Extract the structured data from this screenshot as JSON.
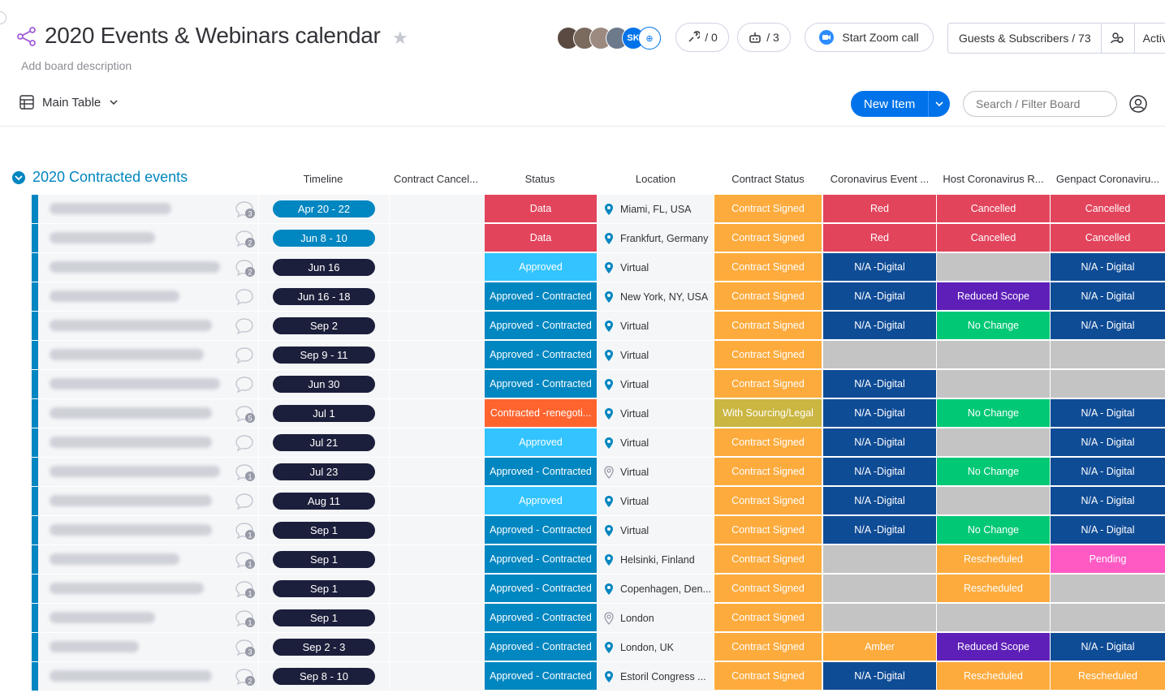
{
  "header": {
    "title": "2020 Events & Webinars calendar",
    "description": "Add board description",
    "avatar_initials": "SK",
    "automations": "/ 0",
    "integrations": "/ 3",
    "zoom_label": "Start Zoom call",
    "guests_label": "Guests & Subscribers / 73",
    "activity_label": "Activ"
  },
  "toolbar": {
    "view_label": "Main Table",
    "new_item_label": "New Item",
    "search_placeholder": "Search / Filter Board"
  },
  "group": {
    "title": "2020 Contracted events",
    "color": "#0086c0"
  },
  "columns": {
    "timeline": "Timeline",
    "contract_cancel": "Contract Cancel...",
    "status": "Status",
    "location": "Location",
    "contract_status": "Contract Status",
    "corona_event": "Coronavirus Event ...",
    "host_corona": "Host Coronavirus R...",
    "genpact_corona": "Genpact Coronaviru..."
  },
  "colors": {
    "red": "#e2445c",
    "sky": "#33c4ff",
    "blue": "#0086c0",
    "orange_status": "#ff642e",
    "orange": "#fdab3d",
    "mustard": "#cab641",
    "navy": "#0f4c96",
    "grey": "#c4c4c4",
    "purple": "#5e1fb8",
    "green": "#00c875",
    "pink": "#ff5ac4",
    "timeline_dark": "#1c1f3b",
    "timeline_blue": "#0086c0"
  },
  "rows": [
    {
      "comments": "3",
      "timeline": "Apr 20 - 22",
      "tl_color": "#0086c0",
      "status": "Data",
      "status_color": "#e2445c",
      "location": "Miami, FL, USA",
      "cstatus": "Contract Signed",
      "cstatus_color": "#fdab3d",
      "c1": "Red",
      "c1_color": "#e2445c",
      "c2": "Cancelled",
      "c2_color": "#e2445c",
      "c3": "Cancelled",
      "c3_color": "#e2445c"
    },
    {
      "comments": "2",
      "timeline": "Jun 8 - 10",
      "tl_color": "#0086c0",
      "status": "Data",
      "status_color": "#e2445c",
      "location": "Frankfurt, Germany",
      "cstatus": "Contract Signed",
      "cstatus_color": "#fdab3d",
      "c1": "Red",
      "c1_color": "#e2445c",
      "c2": "Cancelled",
      "c2_color": "#e2445c",
      "c3": "Cancelled",
      "c3_color": "#e2445c"
    },
    {
      "comments": "2",
      "timeline": "Jun 16",
      "tl_color": "#1c1f3b",
      "status": "Approved",
      "status_color": "#33c4ff",
      "location": "Virtual",
      "cstatus": "Contract Signed",
      "cstatus_color": "#fdab3d",
      "c1": "N/A -Digital",
      "c1_color": "#0f4c96",
      "c2": "",
      "c2_color": "#c4c4c4",
      "c3": "N/A - Digital",
      "c3_color": "#0f4c96"
    },
    {
      "comments": "",
      "timeline": "Jun 16 - 18",
      "tl_color": "#1c1f3b",
      "status": "Approved - Contracted",
      "status_color": "#0086c0",
      "location": "New York, NY, USA",
      "cstatus": "Contract Signed",
      "cstatus_color": "#fdab3d",
      "c1": "N/A -Digital",
      "c1_color": "#0f4c96",
      "c2": "Reduced Scope",
      "c2_color": "#5e1fb8",
      "c3": "N/A - Digital",
      "c3_color": "#0f4c96"
    },
    {
      "comments": "",
      "timeline": "Sep 2",
      "tl_color": "#1c1f3b",
      "status": "Approved - Contracted",
      "status_color": "#0086c0",
      "location": "Virtual",
      "cstatus": "Contract Signed",
      "cstatus_color": "#fdab3d",
      "c1": "N/A -Digital",
      "c1_color": "#0f4c96",
      "c2": "No Change",
      "c2_color": "#00c875",
      "c3": "N/A - Digital",
      "c3_color": "#0f4c96"
    },
    {
      "comments": "",
      "timeline": "Sep 9 - 11",
      "tl_color": "#1c1f3b",
      "status": "Approved - Contracted",
      "status_color": "#0086c0",
      "location": "Virtual",
      "cstatus": "Contract Signed",
      "cstatus_color": "#fdab3d",
      "c1": "",
      "c1_color": "#c4c4c4",
      "c2": "",
      "c2_color": "#c4c4c4",
      "c3": "",
      "c3_color": "#c4c4c4"
    },
    {
      "comments": "",
      "timeline": "Jun 30",
      "tl_color": "#1c1f3b",
      "status": "Approved - Contracted",
      "status_color": "#0086c0",
      "location": "Virtual",
      "cstatus": "Contract Signed",
      "cstatus_color": "#fdab3d",
      "c1": "N/A -Digital",
      "c1_color": "#0f4c96",
      "c2": "",
      "c2_color": "#c4c4c4",
      "c3": "",
      "c3_color": "#c4c4c4"
    },
    {
      "comments": "5",
      "timeline": "Jul 1",
      "tl_color": "#1c1f3b",
      "status": "Contracted -renegoti...",
      "status_color": "#ff642e",
      "location": "Virtual",
      "cstatus": "With Sourcing/Legal",
      "cstatus_color": "#cab641",
      "c1": "N/A -Digital",
      "c1_color": "#0f4c96",
      "c2": "No Change",
      "c2_color": "#00c875",
      "c3": "N/A - Digital",
      "c3_color": "#0f4c96"
    },
    {
      "comments": "",
      "timeline": "Jul 21",
      "tl_color": "#1c1f3b",
      "status": "Approved",
      "status_color": "#33c4ff",
      "location": "Virtual",
      "cstatus": "Contract Signed",
      "cstatus_color": "#fdab3d",
      "c1": "N/A -Digital",
      "c1_color": "#0f4c96",
      "c2": "",
      "c2_color": "#c4c4c4",
      "c3": "N/A - Digital",
      "c3_color": "#0f4c96"
    },
    {
      "comments": "1",
      "timeline": "Jul 23",
      "tl_color": "#1c1f3b",
      "status": "Approved - Contracted",
      "status_color": "#0086c0",
      "location": "Virtual",
      "cstatus": "Contract Signed",
      "cstatus_color": "#fdab3d",
      "c1": "N/A -Digital",
      "c1_color": "#0f4c96",
      "c2": "No Change",
      "c2_color": "#00c875",
      "c3": "N/A - Digital",
      "c3_color": "#0f4c96"
    },
    {
      "comments": "",
      "timeline": "Aug 11",
      "tl_color": "#1c1f3b",
      "status": "Approved",
      "status_color": "#33c4ff",
      "location": "Virtual",
      "cstatus": "Contract Signed",
      "cstatus_color": "#fdab3d",
      "c1": "N/A -Digital",
      "c1_color": "#0f4c96",
      "c2": "",
      "c2_color": "#c4c4c4",
      "c3": "N/A - Digital",
      "c3_color": "#0f4c96"
    },
    {
      "comments": "1",
      "timeline": "Sep 1",
      "tl_color": "#1c1f3b",
      "status": "Approved - Contracted",
      "status_color": "#0086c0",
      "location": "Virtual",
      "cstatus": "Contract Signed",
      "cstatus_color": "#fdab3d",
      "c1": "N/A -Digital",
      "c1_color": "#0f4c96",
      "c2": "No Change",
      "c2_color": "#00c875",
      "c3": "N/A - Digital",
      "c3_color": "#0f4c96"
    },
    {
      "comments": "1",
      "timeline": "Sep 1",
      "tl_color": "#1c1f3b",
      "status": "Approved - Contracted",
      "status_color": "#0086c0",
      "location": "Helsinki, Finland",
      "cstatus": "Contract Signed",
      "cstatus_color": "#fdab3d",
      "c1": "",
      "c1_color": "#c4c4c4",
      "c2": "Rescheduled",
      "c2_color": "#fdab3d",
      "c3": "Pending",
      "c3_color": "#ff5ac4"
    },
    {
      "comments": "1",
      "timeline": "Sep 1",
      "tl_color": "#1c1f3b",
      "status": "Approved - Contracted",
      "status_color": "#0086c0",
      "location": "Copenhagen, Den...",
      "cstatus": "Contract Signed",
      "cstatus_color": "#fdab3d",
      "c1": "",
      "c1_color": "#c4c4c4",
      "c2": "Rescheduled",
      "c2_color": "#fdab3d",
      "c3": "",
      "c3_color": "#c4c4c4"
    },
    {
      "comments": "1",
      "timeline": "Sep 1",
      "tl_color": "#1c1f3b",
      "status": "Approved - Contracted",
      "status_color": "#0086c0",
      "location": "London",
      "cstatus": "Contract Signed",
      "cstatus_color": "#fdab3d",
      "c1": "",
      "c1_color": "#c4c4c4",
      "c2": "",
      "c2_color": "#c4c4c4",
      "c3": "",
      "c3_color": "#c4c4c4"
    },
    {
      "comments": "3",
      "timeline": "Sep 2 - 3",
      "tl_color": "#1c1f3b",
      "status": "Approved - Contracted",
      "status_color": "#0086c0",
      "location": "London, UK",
      "cstatus": "Contract Signed",
      "cstatus_color": "#fdab3d",
      "c1": "Amber",
      "c1_color": "#fdab3d",
      "c2": "Reduced Scope",
      "c2_color": "#5e1fb8",
      "c3": "N/A - Digital",
      "c3_color": "#0f4c96"
    },
    {
      "comments": "2",
      "timeline": "Sep 8 - 10",
      "tl_color": "#1c1f3b",
      "status": "Approved - Contracted",
      "status_color": "#0086c0",
      "location": "Estoril Congress ...",
      "cstatus": "Contract Signed",
      "cstatus_color": "#fdab3d",
      "c1": "N/A -Digital",
      "c1_color": "#0f4c96",
      "c2": "Rescheduled",
      "c2_color": "#fdab3d",
      "c3": "Rescheduled",
      "c3_color": "#fdab3d"
    }
  ]
}
